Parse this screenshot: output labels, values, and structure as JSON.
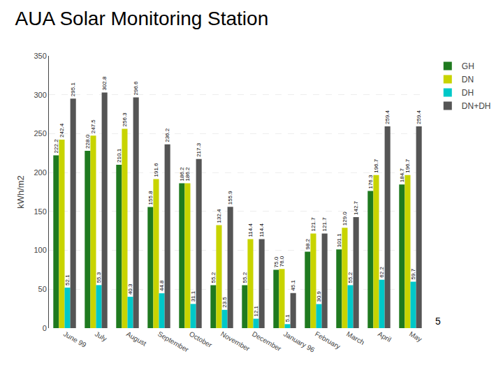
{
  "chart_data": {
    "type": "bar",
    "title": "AUA Solar Monitoring Station",
    "categories": [
      "June 99",
      "July",
      "August",
      "September",
      "October",
      "November",
      "December",
      "January 96",
      "February",
      "March",
      "April",
      "May"
    ],
    "series": [
      {
        "name": "GH",
        "color": "#1f7a1f",
        "values": [
          222.2,
          228.0,
          210.1,
          155.8,
          186.2,
          55.2,
          55.2,
          75.0,
          98.2,
          101.1,
          176.3,
          184.7
        ],
        "value_labels": [
          "222.2",
          "228.0",
          "210.1",
          "155.8",
          "186.2",
          "55.2",
          "55.2",
          "75.0",
          "98.2",
          "101.1",
          "176.3",
          "184.7"
        ]
      },
      {
        "name": "DN",
        "color": "#c8d400",
        "values": [
          242.4,
          247.5,
          256.3,
          191.6,
          186.2,
          132.4,
          114.4,
          76.0,
          121.7,
          129.0,
          196.7,
          196.7
        ],
        "value_labels": [
          "242.4",
          "247.5",
          "256.3",
          "191.6",
          "186.2",
          "132.4",
          "114.4",
          "76.0",
          "121.7",
          "129.0",
          "196.7",
          "196.7"
        ]
      },
      {
        "name": "DH",
        "color": "#00c8c8",
        "values": [
          52.1,
          55.3,
          40.3,
          44.8,
          31.1,
          23.5,
          12.1,
          5.1,
          30.9,
          55.2,
          62.2,
          59.7
        ]
      },
      {
        "name": "DN+DH",
        "color": "#555555",
        "values": [
          295.1,
          302.8,
          296.6,
          236.2,
          217.3,
          155.9,
          114.4,
          45.1,
          121.7,
          142.7,
          259.4,
          259.4
        ]
      }
    ],
    "ylabel": "kWh/m2",
    "ylim": [
      0,
      350
    ],
    "yticks": [
      0,
      50,
      100,
      150,
      200,
      250,
      300,
      350
    ],
    "grid": true,
    "legend": "upper right",
    "data_labels": true,
    "annotations": [
      "5"
    ]
  }
}
